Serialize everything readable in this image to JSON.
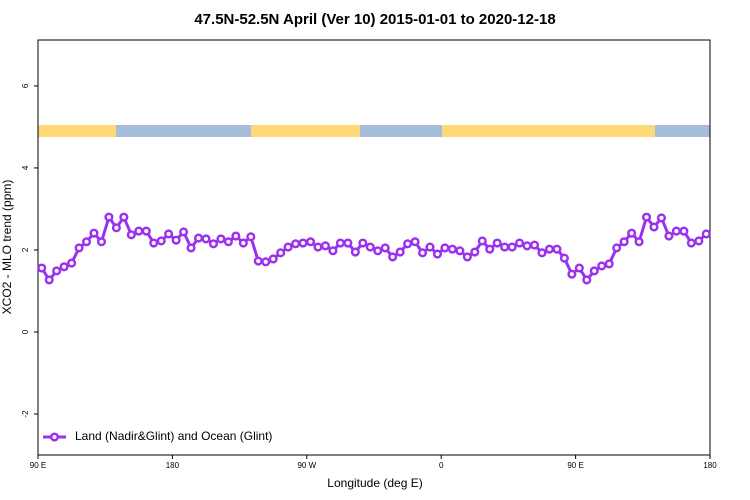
{
  "chart_data": {
    "type": "line",
    "title": "47.5N-52.5N April (Ver 10)   2015-01-01 to 2020-12-18",
    "x_label": "Longitude (deg E)",
    "y_label": "XCO2 - MLO trend (ppm)",
    "xlim": [
      90,
      540
    ],
    "xticks": [
      {
        "value": 90,
        "label": "90 E"
      },
      {
        "value": 180,
        "label": "180"
      },
      {
        "value": 270,
        "label": "90 W"
      },
      {
        "value": 360,
        "label": "0"
      },
      {
        "value": 450,
        "label": "90 E"
      },
      {
        "value": 540,
        "label": "180"
      }
    ],
    "ylim": [
      -3,
      7.12
    ],
    "yticks": [
      -2,
      0,
      2,
      4,
      6
    ],
    "legend": "bottom-left",
    "x": [
      92.5,
      97.5,
      102.5,
      107.5,
      112.5,
      117.5,
      122.5,
      127.5,
      132.5,
      137.5,
      142.5,
      147.5,
      152.5,
      157.5,
      162.5,
      167.5,
      172.5,
      177.5,
      182.5,
      187.5,
      192.5,
      197.5,
      202.5,
      207.5,
      212.5,
      217.5,
      222.5,
      227.5,
      232.5,
      237.5,
      242.5,
      247.5,
      252.5,
      257.5,
      262.5,
      267.5,
      272.5,
      277.5,
      282.5,
      287.5,
      292.5,
      297.5,
      302.5,
      307.5,
      312.5,
      317.5,
      322.5,
      327.5,
      332.5,
      337.5,
      342.5,
      347.5,
      352.5,
      357.5,
      362.5,
      367.5,
      372.5,
      377.5,
      382.5,
      387.5,
      392.5,
      397.5,
      402.5,
      407.5,
      412.5,
      417.5,
      422.5,
      427.5,
      432.5,
      437.5,
      442.5,
      447.5,
      452.5,
      457.5,
      462.5,
      467.5,
      472.5,
      477.5,
      482.5,
      487.5,
      492.5,
      497.5,
      502.5,
      507.5,
      512.5,
      517.5,
      522.5,
      527.5,
      532.5,
      537.5
    ],
    "series": [
      {
        "name": "Land (Nadir&Glint) and Ocean (Glint)",
        "color": "#9b30f0",
        "values": [
          1.56,
          1.27,
          1.49,
          1.59,
          1.68,
          2.05,
          2.2,
          2.41,
          2.2,
          2.8,
          2.54,
          2.8,
          2.37,
          2.46,
          2.46,
          2.17,
          2.22,
          2.39,
          2.24,
          2.44,
          2.05,
          2.29,
          2.27,
          2.15,
          2.27,
          2.2,
          2.34,
          2.17,
          2.32,
          1.73,
          1.71,
          1.78,
          1.93,
          2.07,
          2.15,
          2.17,
          2.2,
          2.07,
          2.1,
          1.98,
          2.17,
          2.17,
          1.95,
          2.17,
          2.07,
          1.98,
          2.05,
          1.83,
          1.95,
          2.15,
          2.2,
          1.93,
          2.07,
          1.9,
          2.05,
          2.02,
          1.98,
          1.83,
          1.95,
          2.22,
          2.02,
          2.17,
          2.07,
          2.07,
          2.17,
          2.1,
          2.12,
          1.93,
          2.02,
          2.02,
          1.8,
          1.41,
          1.56,
          1.27,
          1.49,
          1.61,
          1.66,
          2.05,
          2.2,
          2.41,
          2.2,
          2.8,
          2.56,
          2.78,
          2.34,
          2.46,
          2.46,
          2.17,
          2.22,
          2.39
        ]
      }
    ]
  }
}
